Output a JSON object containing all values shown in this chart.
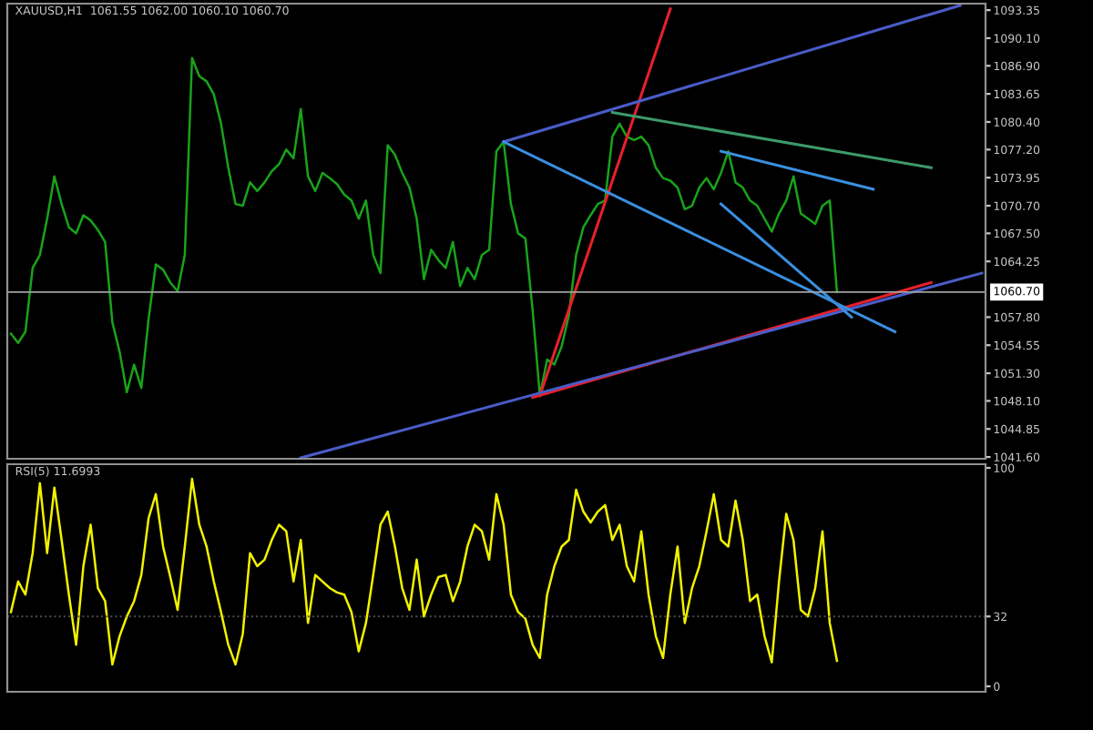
{
  "chart_data": [
    {
      "type": "line",
      "title": "XAUUSD,H1  1061.55 1062.00 1060.10 1060.70",
      "categories": [
        null,
        null,
        null,
        null,
        null,
        null,
        null,
        null,
        null,
        null,
        null,
        null,
        null,
        null,
        null,
        null,
        null,
        null,
        null,
        null,
        null,
        null,
        null,
        null,
        null,
        null,
        null,
        null,
        null,
        null,
        null,
        null,
        null,
        null,
        null,
        null,
        null,
        null,
        null,
        null,
        null,
        null,
        null,
        null,
        null,
        null,
        null,
        null,
        null,
        null,
        null,
        null,
        null,
        null,
        null,
        null,
        null,
        null,
        null,
        null,
        null,
        null,
        null,
        null,
        null,
        null,
        null,
        null,
        null,
        null,
        null,
        null,
        null,
        null,
        null,
        null,
        null,
        null,
        null,
        null,
        null,
        null,
        null,
        null,
        null,
        null,
        null,
        null,
        null,
        null,
        null,
        null,
        null,
        null,
        null,
        null,
        null,
        null,
        null,
        null,
        null,
        null,
        null,
        null,
        null,
        null,
        null,
        null,
        null,
        null,
        null,
        null,
        null,
        null,
        null,
        null,
        null,
        null,
        null,
        null,
        null,
        null,
        null,
        null,
        null,
        null,
        null,
        null,
        null,
        null,
        null,
        null,
        null,
        null,
        null
      ],
      "series": [
        {
          "color": "#19a319",
          "values": [
            1055.9,
            1054.8,
            1056.1,
            1063.5,
            1065.0,
            1069.2,
            1074.1,
            1070.9,
            1068.2,
            1067.5,
            1069.6,
            1069.0,
            1067.9,
            1066.5,
            1057.2,
            1053.8,
            1049.1,
            1052.3,
            1049.6,
            1057.6,
            1063.9,
            1063.3,
            1061.8,
            1060.8,
            1065.0,
            1087.8,
            1085.7,
            1085.1,
            1083.6,
            1080.2,
            1075.1,
            1070.9,
            1070.7,
            1073.4,
            1072.4,
            1073.4,
            1074.7,
            1075.5,
            1077.2,
            1076.2,
            1081.9,
            1074.1,
            1072.4,
            1074.5,
            1073.9,
            1073.2,
            1072.0,
            1071.3,
            1069.2,
            1071.3,
            1065.0,
            1062.9,
            1077.7,
            1076.6,
            1074.5,
            1072.8,
            1069.2,
            1062.2,
            1065.6,
            1064.4,
            1063.5,
            1066.5,
            1061.4,
            1063.5,
            1062.2,
            1065.0,
            1065.6,
            1077.0,
            1078.1,
            1070.9,
            1067.5,
            1066.9,
            1058.6,
            1048.7,
            1052.9,
            1052.3,
            1054.4,
            1058.0,
            1065.0,
            1068.2,
            1069.6,
            1070.9,
            1071.3,
            1078.7,
            1080.2,
            1078.7,
            1078.3,
            1078.7,
            1077.7,
            1075.1,
            1073.9,
            1073.6,
            1072.8,
            1070.3,
            1070.7,
            1072.8,
            1073.9,
            1072.6,
            1074.5,
            1077.0,
            1073.4,
            1072.8,
            1071.3,
            1070.7,
            1069.2,
            1067.7,
            1069.8,
            1071.3,
            1074.1,
            1069.8,
            1069.2,
            1068.6,
            1070.7,
            1071.3,
            1060.7,
            null,
            null,
            null,
            null,
            null,
            null,
            null,
            null,
            null,
            null,
            null,
            null,
            null,
            null,
            null,
            null,
            null,
            null,
            null,
            null
          ]
        },
        {
          "color": "#e8202a",
          "values": [
            null,
            null,
            null,
            null,
            null,
            null,
            null,
            null,
            null,
            null,
            null,
            null,
            null,
            null,
            null,
            null,
            null,
            null,
            null,
            null,
            null,
            null,
            null,
            null,
            null,
            null,
            null,
            null,
            null,
            null,
            null,
            null,
            null,
            null,
            null,
            null,
            null,
            null,
            null,
            null,
            null,
            null,
            null,
            null,
            null,
            null,
            null,
            null,
            null,
            null,
            null,
            null,
            null,
            null,
            null,
            null,
            null,
            null,
            null,
            null,
            null,
            null,
            null,
            null,
            null,
            null,
            null,
            null,
            null,
            null,
            null,
            null,
            null,
            1048.7,
            null,
            null,
            null,
            null,
            null,
            null,
            null,
            null,
            null,
            null,
            null,
            null,
            null,
            null,
            null,
            null,
            null,
            1093.5,
            null,
            null,
            null,
            null,
            null,
            null,
            null,
            null,
            null,
            null,
            null,
            null,
            null,
            null,
            null,
            null,
            null,
            null,
            null,
            null,
            null,
            null,
            null,
            null,
            null,
            null,
            null,
            null,
            null,
            null,
            null,
            null,
            null,
            null,
            null,
            null,
            null,
            null,
            null,
            null,
            null,
            null,
            null
          ]
        },
        {
          "color": "#e8202a",
          "values": [
            null,
            null,
            null,
            null,
            null,
            null,
            null,
            null,
            null,
            null,
            null,
            null,
            null,
            null,
            null,
            null,
            null,
            null,
            null,
            null,
            null,
            null,
            null,
            null,
            null,
            null,
            null,
            null,
            null,
            null,
            null,
            null,
            null,
            null,
            null,
            null,
            null,
            null,
            null,
            null,
            null,
            null,
            null,
            null,
            null,
            null,
            null,
            null,
            null,
            null,
            null,
            null,
            null,
            null,
            null,
            null,
            null,
            null,
            null,
            null,
            null,
            null,
            null,
            null,
            null,
            null,
            null,
            null,
            null,
            null,
            null,
            null,
            1048.5,
            null,
            null,
            null,
            null,
            null,
            null,
            null,
            null,
            null,
            null,
            null,
            null,
            null,
            null,
            null,
            null,
            null,
            null,
            null,
            null,
            null,
            null,
            null,
            null,
            null,
            null,
            null,
            null,
            null,
            null,
            null,
            null,
            null,
            null,
            null,
            null,
            null,
            null,
            null,
            null,
            null,
            null,
            null,
            null,
            null,
            null,
            null,
            null,
            null,
            null,
            null,
            null,
            null,
            null,
            1061.8,
            null,
            null,
            null,
            null,
            null,
            null,
            null
          ]
        },
        {
          "color": "#4a5cc8",
          "values": [
            null,
            null,
            null,
            null,
            null,
            null,
            null,
            null,
            null,
            null,
            null,
            null,
            null,
            null,
            null,
            null,
            null,
            null,
            null,
            null,
            null,
            null,
            null,
            null,
            null,
            null,
            null,
            null,
            null,
            null,
            null,
            null,
            null,
            null,
            null,
            null,
            null,
            null,
            null,
            null,
            null,
            null,
            null,
            null,
            null,
            null,
            null,
            null,
            null,
            null,
            null,
            null,
            null,
            null,
            null,
            null,
            null,
            null,
            null,
            null,
            null,
            null,
            null,
            null,
            null,
            null,
            null,
            null,
            1078.1,
            null,
            null,
            null,
            null,
            null,
            null,
            null,
            null,
            null,
            null,
            null,
            null,
            null,
            null,
            null,
            null,
            null,
            null,
            null,
            null,
            null,
            null,
            null,
            null,
            null,
            null,
            null,
            null,
            null,
            null,
            null,
            null,
            null,
            null,
            null,
            null,
            null,
            null,
            null,
            null,
            null,
            null,
            null,
            null,
            null,
            null,
            null,
            null,
            null,
            null,
            null,
            null,
            null,
            null,
            null,
            null,
            null,
            null,
            null,
            null,
            null,
            null,
            1093.9,
            null,
            null,
            null
          ]
        },
        {
          "color": "#4a5cc8",
          "values": [
            null,
            null,
            null,
            null,
            null,
            null,
            null,
            null,
            null,
            null,
            null,
            null,
            null,
            null,
            null,
            null,
            null,
            null,
            null,
            null,
            null,
            null,
            null,
            null,
            null,
            null,
            null,
            null,
            null,
            null,
            null,
            null,
            null,
            null,
            null,
            null,
            null,
            null,
            null,
            null,
            1041.5,
            null,
            null,
            null,
            null,
            null,
            null,
            null,
            null,
            null,
            null,
            null,
            null,
            null,
            null,
            null,
            null,
            null,
            null,
            null,
            null,
            null,
            null,
            null,
            null,
            null,
            null,
            null,
            null,
            null,
            null,
            null,
            null,
            null,
            null,
            null,
            null,
            null,
            null,
            null,
            null,
            null,
            null,
            null,
            null,
            null,
            null,
            null,
            null,
            null,
            null,
            null,
            null,
            null,
            null,
            null,
            null,
            null,
            null,
            null,
            null,
            null,
            null,
            null,
            null,
            null,
            null,
            null,
            null,
            null,
            null,
            null,
            null,
            null,
            null,
            null,
            null,
            null,
            null,
            null,
            null,
            null,
            null,
            null,
            null,
            null,
            null,
            null,
            null,
            null,
            null,
            null,
            null,
            null,
            1062.9
          ]
        },
        {
          "color": "#3a8fe0",
          "values": [
            null,
            null,
            null,
            null,
            null,
            null,
            null,
            null,
            null,
            null,
            null,
            null,
            null,
            null,
            null,
            null,
            null,
            null,
            null,
            null,
            null,
            null,
            null,
            null,
            null,
            null,
            null,
            null,
            null,
            null,
            null,
            null,
            null,
            null,
            null,
            null,
            null,
            null,
            null,
            null,
            null,
            null,
            null,
            null,
            null,
            null,
            null,
            null,
            null,
            null,
            null,
            null,
            null,
            null,
            null,
            null,
            null,
            null,
            null,
            null,
            null,
            null,
            null,
            null,
            null,
            null,
            null,
            null,
            1078.1,
            null,
            null,
            null,
            null,
            null,
            null,
            null,
            null,
            null,
            null,
            null,
            null,
            null,
            null,
            null,
            null,
            null,
            null,
            null,
            null,
            null,
            null,
            null,
            null,
            null,
            null,
            null,
            null,
            null,
            null,
            null,
            null,
            null,
            null,
            null,
            null,
            null,
            null,
            null,
            null,
            null,
            null,
            null,
            null,
            null,
            null,
            null,
            null,
            null,
            null,
            null,
            null,
            null,
            1056.1,
            null,
            null,
            null,
            null,
            null,
            null,
            null,
            null,
            null,
            null,
            null,
            null
          ]
        },
        {
          "color": "#3a8fe0",
          "values": [
            null,
            null,
            null,
            null,
            null,
            null,
            null,
            null,
            null,
            null,
            null,
            null,
            null,
            null,
            null,
            null,
            null,
            null,
            null,
            null,
            null,
            null,
            null,
            null,
            null,
            null,
            null,
            null,
            null,
            null,
            null,
            null,
            null,
            null,
            null,
            null,
            null,
            null,
            null,
            null,
            null,
            null,
            null,
            null,
            null,
            null,
            null,
            null,
            null,
            null,
            null,
            null,
            null,
            null,
            null,
            null,
            null,
            null,
            null,
            null,
            null,
            null,
            null,
            null,
            null,
            null,
            null,
            null,
            null,
            null,
            null,
            null,
            null,
            null,
            null,
            null,
            null,
            null,
            null,
            null,
            null,
            null,
            null,
            null,
            null,
            null,
            null,
            null,
            null,
            null,
            null,
            null,
            null,
            null,
            null,
            null,
            null,
            null,
            1077.0,
            null,
            null,
            null,
            null,
            null,
            null,
            null,
            null,
            null,
            null,
            null,
            null,
            null,
            null,
            null,
            null,
            null,
            null,
            null,
            null,
            1072.6,
            null,
            null,
            null,
            null,
            null,
            null,
            null,
            null,
            null,
            null,
            null,
            null,
            null,
            null,
            null
          ]
        },
        {
          "color": "#3a8fe0",
          "values": [
            null,
            null,
            null,
            null,
            null,
            null,
            null,
            null,
            null,
            null,
            null,
            null,
            null,
            null,
            null,
            null,
            null,
            null,
            null,
            null,
            null,
            null,
            null,
            null,
            null,
            null,
            null,
            null,
            null,
            null,
            null,
            null,
            null,
            null,
            null,
            null,
            null,
            null,
            null,
            null,
            null,
            null,
            null,
            null,
            null,
            null,
            null,
            null,
            null,
            null,
            null,
            null,
            null,
            null,
            null,
            null,
            null,
            null,
            null,
            null,
            null,
            null,
            null,
            null,
            null,
            null,
            null,
            null,
            null,
            null,
            null,
            null,
            null,
            null,
            null,
            null,
            null,
            null,
            null,
            null,
            null,
            null,
            null,
            null,
            null,
            null,
            null,
            null,
            null,
            null,
            null,
            null,
            null,
            null,
            null,
            null,
            null,
            null,
            1070.9,
            null,
            null,
            null,
            null,
            null,
            null,
            null,
            null,
            null,
            null,
            null,
            null,
            null,
            null,
            null,
            null,
            null,
            1057.8,
            null,
            null,
            null,
            null,
            null,
            null,
            null,
            null,
            null,
            null,
            null,
            null,
            null,
            null,
            null,
            null,
            null,
            null
          ]
        },
        {
          "color": "#3c9a6a",
          "values": [
            null,
            null,
            null,
            null,
            null,
            null,
            null,
            null,
            null,
            null,
            null,
            null,
            null,
            null,
            null,
            null,
            null,
            null,
            null,
            null,
            null,
            null,
            null,
            null,
            null,
            null,
            null,
            null,
            null,
            null,
            null,
            null,
            null,
            null,
            null,
            null,
            null,
            null,
            null,
            null,
            null,
            null,
            null,
            null,
            null,
            null,
            null,
            null,
            null,
            null,
            null,
            null,
            null,
            null,
            null,
            null,
            null,
            null,
            null,
            null,
            null,
            null,
            null,
            null,
            null,
            null,
            null,
            null,
            null,
            null,
            null,
            null,
            null,
            null,
            null,
            null,
            null,
            null,
            null,
            null,
            null,
            null,
            null,
            1081.5,
            null,
            null,
            null,
            null,
            null,
            null,
            null,
            null,
            null,
            null,
            null,
            null,
            null,
            null,
            null,
            null,
            null,
            null,
            null,
            null,
            null,
            null,
            null,
            null,
            null,
            null,
            null,
            null,
            null,
            null,
            null,
            null,
            null,
            null,
            null,
            null,
            null,
            null,
            null,
            null,
            null,
            null,
            null,
            1075.1,
            null,
            null,
            null,
            null,
            null,
            null,
            null
          ]
        }
      ],
      "ylim": [
        1041.4,
        1094.1
      ],
      "yticks": [
        1093.35,
        {
          "value": 1090.1,
          "label": "1090.10"
        },
        {
          "value": 1086.9,
          "label": "1086.90"
        },
        1083.65,
        {
          "value": 1080.4,
          "label": "1080.40"
        },
        {
          "value": 1077.2,
          "label": "1077.20"
        },
        1073.95,
        {
          "value": 1070.7,
          "label": "1070.70"
        },
        {
          "value": 1067.5,
          "label": "1067.50"
        },
        1064.25,
        {
          "value": 1057.8,
          "label": "1057.80"
        },
        1054.55,
        {
          "value": 1051.3,
          "label": "1051.30"
        },
        {
          "value": 1048.1,
          "label": "1048.10"
        },
        1044.85,
        {
          "value": 1041.6,
          "label": "1041.60"
        }
      ],
      "ref_lines": [
        {
          "axis": "y",
          "value": 1060.7,
          "label": "1060.70",
          "color": "#a0a0a0"
        }
      ],
      "tick_labels": "y",
      "grid": false,
      "legend": false
    },
    {
      "type": "line",
      "title": "RSI(5) 11.6993",
      "categories": [
        null,
        null,
        null,
        null,
        null,
        null,
        null,
        null,
        null,
        null,
        null,
        null,
        null,
        null,
        null,
        null,
        null,
        null,
        null,
        null,
        null,
        null,
        null,
        null,
        null,
        null,
        null,
        null,
        null,
        null,
        null,
        null,
        null,
        null,
        null,
        null,
        null,
        null,
        null,
        null,
        null,
        null,
        null,
        null,
        null,
        null,
        null,
        null,
        null,
        null,
        null,
        null,
        null,
        null,
        null,
        null,
        null,
        null,
        null,
        null,
        null,
        null,
        null,
        null,
        null,
        null,
        null,
        null,
        null,
        null,
        null,
        null,
        null,
        null,
        null,
        null,
        null,
        null,
        null,
        null,
        null,
        null,
        null,
        null,
        null,
        null,
        null,
        null,
        null,
        null,
        null,
        null,
        null,
        null,
        null,
        null,
        null,
        null,
        null,
        null,
        null,
        null,
        null,
        null,
        null,
        null,
        null,
        null,
        null,
        null,
        null,
        null,
        null,
        null,
        null,
        null,
        null,
        null,
        null,
        null,
        null,
        null,
        null,
        null,
        null,
        null,
        null,
        null,
        null,
        null,
        null,
        null,
        null,
        null,
        null
      ],
      "series": [
        {
          "color": "#f2f200",
          "values": [
            34,
            48,
            42,
            61,
            93,
            61,
            91,
            67,
            42,
            19,
            55,
            74,
            45,
            39,
            10,
            23,
            32,
            39,
            51,
            77,
            88,
            64,
            50,
            35,
            64,
            95,
            74,
            64,
            48,
            34,
            19,
            10,
            24,
            61,
            55,
            58,
            67,
            74,
            71,
            48,
            67,
            29,
            51,
            48,
            45,
            43,
            42,
            34,
            16,
            29,
            51,
            74,
            80,
            64,
            45,
            35,
            58,
            32,
            42,
            50,
            51,
            39,
            48,
            64,
            74,
            71,
            58,
            88,
            74,
            42,
            34,
            31,
            19,
            13,
            42,
            55,
            64,
            67,
            90,
            80,
            75,
            80,
            83,
            67,
            74,
            55,
            48,
            71,
            42,
            23,
            13,
            42,
            64,
            29,
            45,
            55,
            71,
            88,
            67,
            64,
            85,
            67,
            39,
            42,
            23,
            11,
            48,
            79,
            67,
            35,
            32,
            45,
            71,
            29,
            11.7,
            null,
            null,
            null,
            null,
            null,
            null,
            null,
            null,
            null,
            null,
            null,
            null,
            null,
            null,
            null,
            null,
            null,
            null,
            null,
            null
          ]
        }
      ],
      "ylim": [
        -2.5,
        101.7
      ],
      "yticks": [
        0,
        32,
        100
      ],
      "ref_lines": [
        {
          "axis": "y",
          "value": 32,
          "color": "#505050",
          "line_style": "dotted"
        }
      ],
      "tick_labels": "y",
      "grid": false,
      "legend": false
    }
  ]
}
